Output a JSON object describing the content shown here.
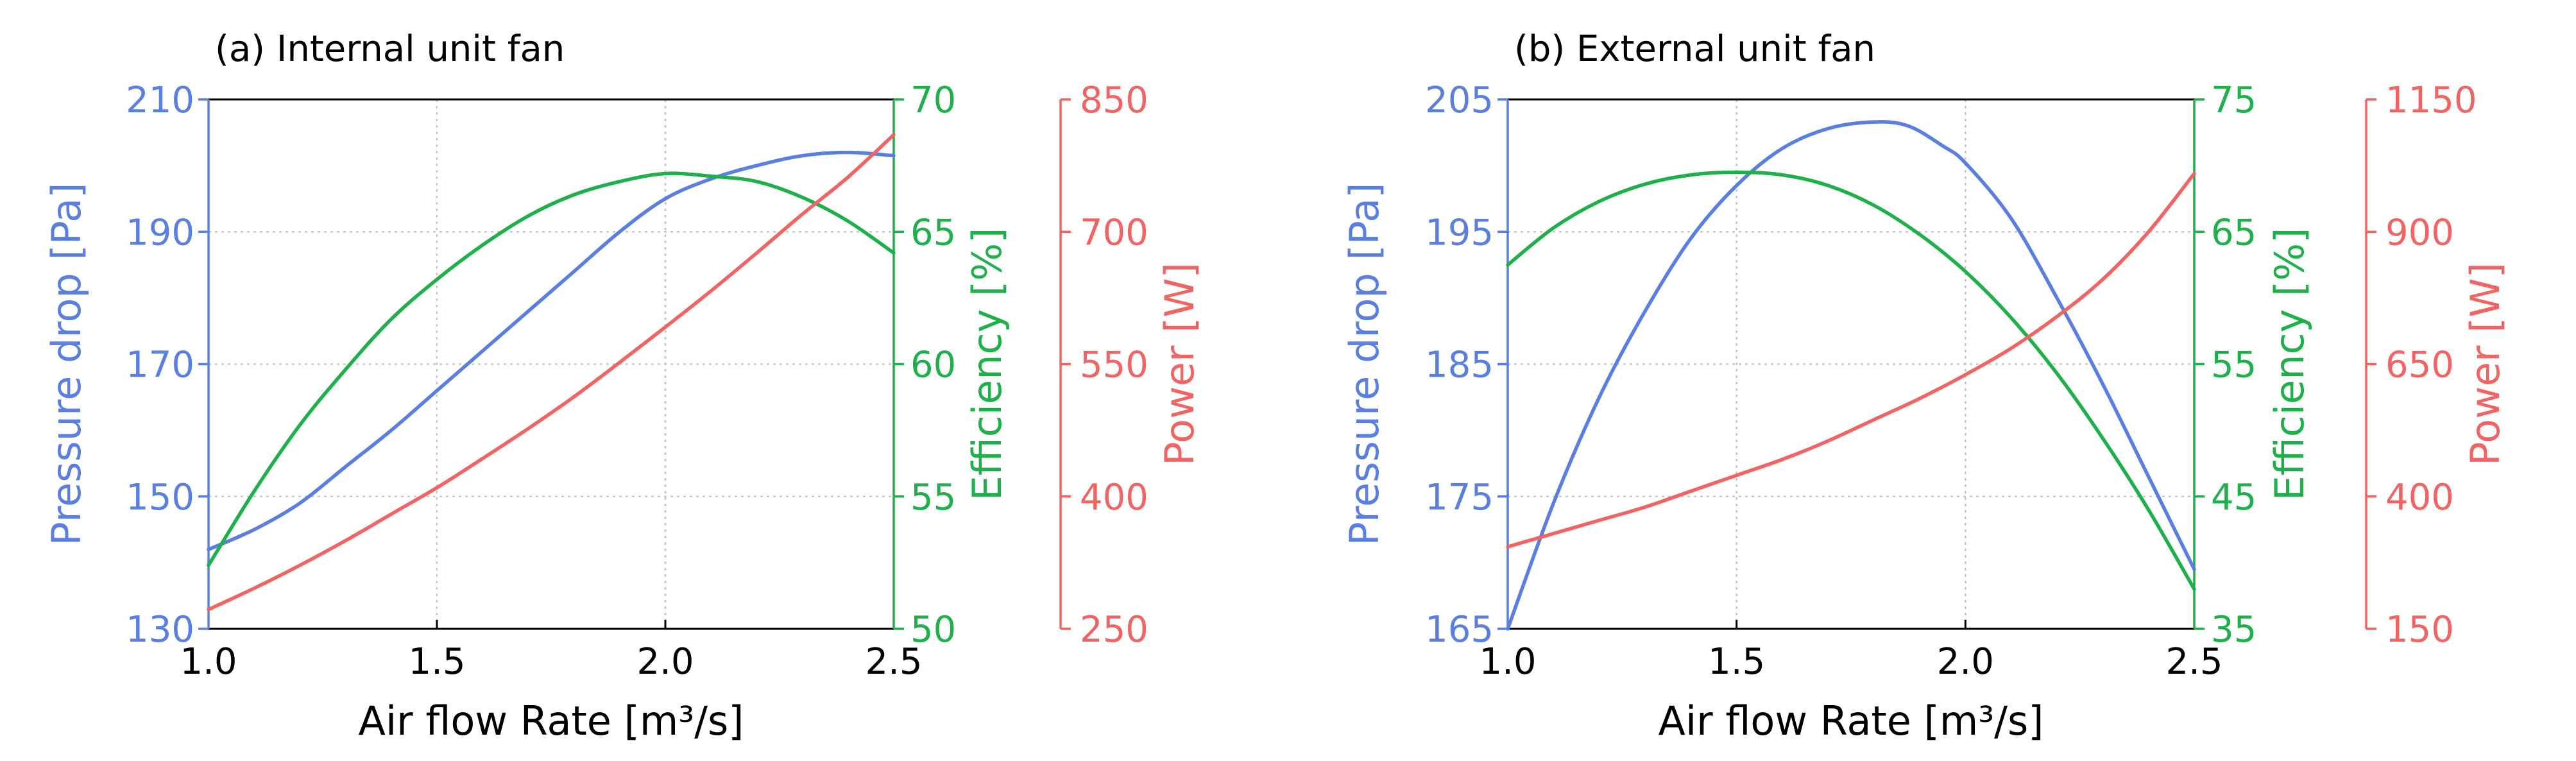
{
  "colors": {
    "pressure": "#5b7fe0",
    "efficiency": "#1fb04b",
    "power": "#f06464",
    "frame": "#000000",
    "grid": "#c8c8c8"
  },
  "chart_data": [
    {
      "type": "line",
      "title": "(a) Internal unit fan",
      "xlabel": "Air flow Rate [m³/s]",
      "xlim": [
        1.0,
        2.5
      ],
      "xticks": [
        "1.0",
        "1.5",
        "2.0",
        "2.5"
      ],
      "grid": true,
      "axes": [
        {
          "id": "pressure",
          "label": "Pressure drop [Pa]",
          "ylim": [
            130,
            210
          ],
          "ticks": [
            "130",
            "150",
            "170",
            "190",
            "210"
          ],
          "side": "left"
        },
        {
          "id": "efficiency",
          "label": "Efficiency [%]",
          "ylim": [
            50,
            70
          ],
          "ticks": [
            "50",
            "55",
            "60",
            "65",
            "70"
          ],
          "side": "right"
        },
        {
          "id": "power",
          "label": "Power [W]",
          "ylim": [
            250,
            850
          ],
          "ticks": [
            "250",
            "400",
            "550",
            "700",
            "850"
          ],
          "side": "right-offset"
        }
      ],
      "series": [
        {
          "axis": "pressure",
          "x": [
            1.0,
            1.1,
            1.2,
            1.3,
            1.4,
            1.5,
            1.6,
            1.7,
            1.8,
            1.9,
            2.0,
            2.1,
            2.2,
            2.3,
            2.4,
            2.5
          ],
          "y": [
            142.0,
            145.0,
            149.0,
            154.5,
            160.0,
            166.0,
            172.0,
            178.0,
            184.0,
            190.0,
            195.0,
            198.0,
            200.0,
            201.5,
            202.0,
            201.5
          ]
        },
        {
          "axis": "efficiency",
          "x": [
            1.0,
            1.1,
            1.2,
            1.3,
            1.4,
            1.5,
            1.6,
            1.7,
            1.8,
            1.9,
            2.0,
            2.1,
            2.2,
            2.3,
            2.4,
            2.5
          ],
          "y": [
            52.4,
            55.2,
            57.7,
            59.8,
            61.7,
            63.2,
            64.5,
            65.6,
            66.4,
            66.9,
            67.2,
            67.1,
            66.9,
            66.3,
            65.4,
            64.2
          ]
        },
        {
          "axis": "power",
          "x": [
            1.0,
            1.1,
            1.2,
            1.3,
            1.4,
            1.5,
            1.6,
            1.7,
            1.8,
            1.9,
            2.0,
            2.1,
            2.2,
            2.3,
            2.4,
            2.5
          ],
          "y": [
            272,
            296,
            322,
            350,
            380,
            410,
            443,
            477,
            513,
            552,
            592,
            633,
            676,
            720,
            762,
            810
          ]
        }
      ]
    },
    {
      "type": "line",
      "title": "(b) External unit fan",
      "xlabel": "Air flow Rate [m³/s]",
      "xlim": [
        1.0,
        2.5
      ],
      "xticks": [
        "1.0",
        "1.5",
        "2.0",
        "2.5"
      ],
      "grid": true,
      "axes": [
        {
          "id": "pressure",
          "label": "Pressure drop [Pa]",
          "ylim": [
            165,
            205
          ],
          "ticks": [
            "165",
            "175",
            "185",
            "195",
            "205"
          ],
          "side": "left"
        },
        {
          "id": "efficiency",
          "label": "Efficiency [%]",
          "ylim": [
            35,
            75
          ],
          "ticks": [
            "35",
            "45",
            "55",
            "65",
            "75"
          ],
          "side": "right"
        },
        {
          "id": "power",
          "label": "Power [W]",
          "ylim": [
            150,
            1150
          ],
          "ticks": [
            "150",
            "400",
            "650",
            "900",
            "1150"
          ],
          "side": "right-offset"
        }
      ],
      "series": [
        {
          "axis": "pressure",
          "x": [
            1.0,
            1.1,
            1.2,
            1.3,
            1.4,
            1.5,
            1.6,
            1.7,
            1.8,
            1.875,
            1.95,
            2.0,
            2.1,
            2.2,
            2.3,
            2.4,
            2.5
          ],
          "y": [
            165.0,
            174.5,
            182.5,
            189.0,
            194.5,
            198.5,
            201.3,
            202.8,
            203.3,
            203.0,
            201.5,
            200.2,
            196.0,
            190.0,
            183.5,
            176.5,
            169.5
          ]
        },
        {
          "axis": "efficiency",
          "x": [
            1.0,
            1.1,
            1.2,
            1.3,
            1.4,
            1.5,
            1.6,
            1.7,
            1.8,
            1.9,
            2.0,
            2.1,
            2.2,
            2.3,
            2.4,
            2.5
          ],
          "y": [
            62.5,
            65.3,
            67.3,
            68.6,
            69.3,
            69.5,
            69.3,
            68.5,
            67.0,
            64.8,
            62.0,
            58.5,
            54.3,
            49.4,
            44.0,
            38.0
          ]
        },
        {
          "axis": "power",
          "x": [
            1.0,
            1.1,
            1.2,
            1.3,
            1.4,
            1.5,
            1.6,
            1.7,
            1.8,
            1.9,
            2.0,
            2.1,
            2.2,
            2.3,
            2.4,
            2.5
          ],
          "y": [
            305,
            330,
            355,
            380,
            410,
            440,
            470,
            505,
            545,
            585,
            630,
            680,
            740,
            810,
            900,
            1010
          ]
        }
      ]
    }
  ]
}
